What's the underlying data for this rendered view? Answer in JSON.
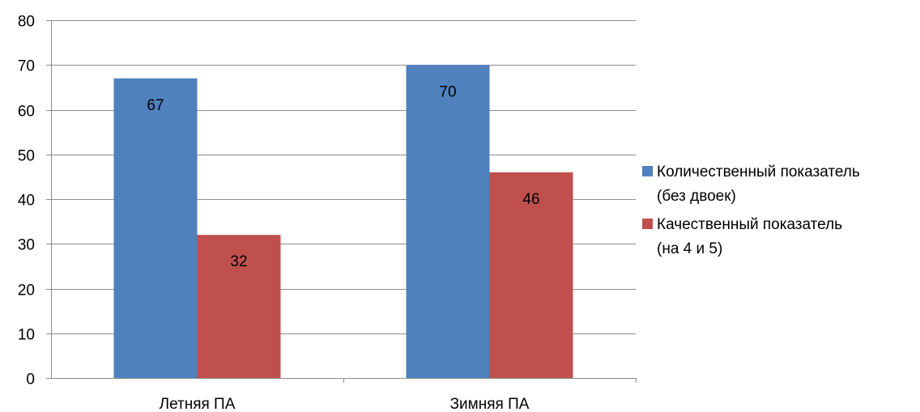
{
  "chart_data": {
    "type": "bar",
    "categories": [
      "Летняя ПА",
      "Зимняя ПА"
    ],
    "series": [
      {
        "name": "Количественный показатель (без двоек)",
        "legend_lines": [
          "Количественный показатель",
          "(без двоек)"
        ],
        "values": [
          67,
          70
        ],
        "color": "#4f81bd"
      },
      {
        "name": "Качественный показатель (на 4 и 5)",
        "legend_lines": [
          "Качественный показатель",
          "(на 4 и 5)"
        ],
        "values": [
          32,
          46
        ],
        "color": "#c0504d"
      }
    ],
    "title": "",
    "xlabel": "",
    "ylabel": "",
    "ylim": [
      0,
      80
    ],
    "yticks": [
      0,
      10,
      20,
      30,
      40,
      50,
      60,
      70,
      80
    ],
    "grid": true,
    "legend_position": "right",
    "data_labels": true,
    "gridline_color": "#8c8c8c"
  }
}
